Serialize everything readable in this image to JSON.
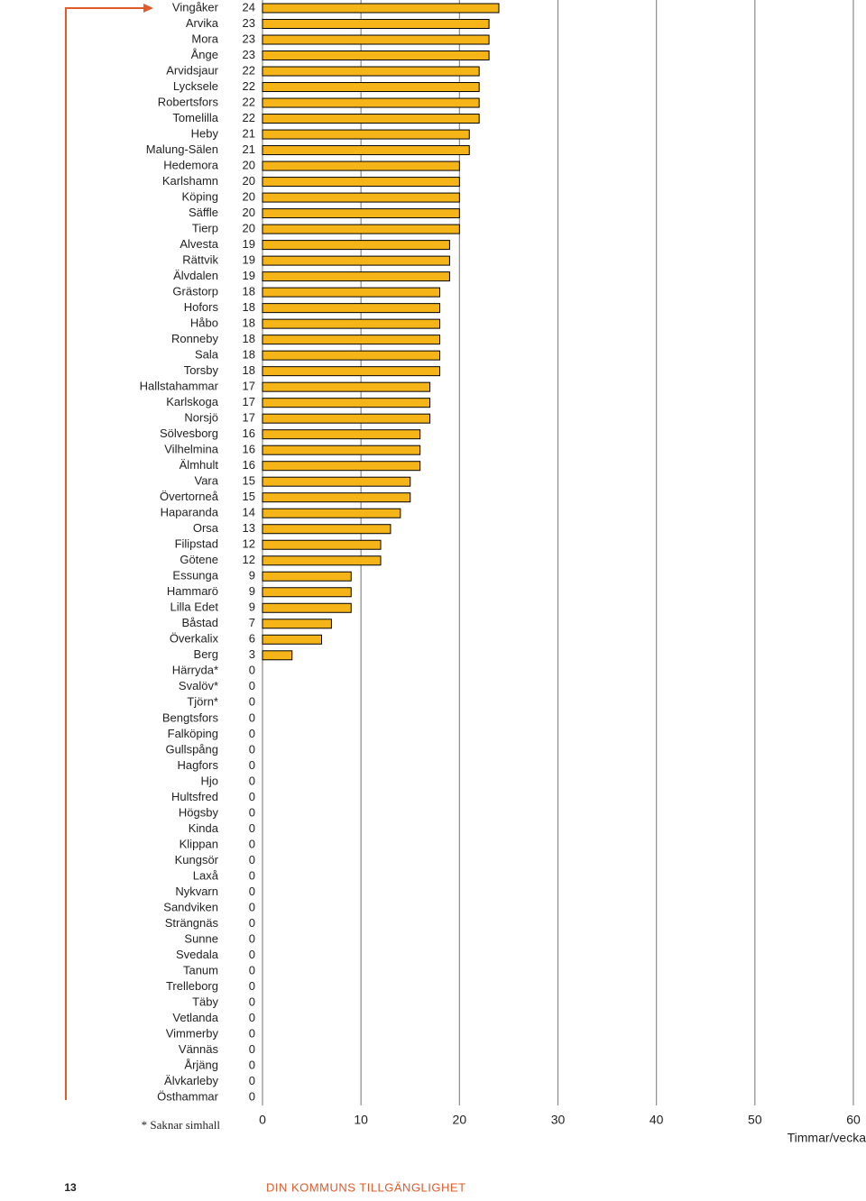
{
  "chart_data": {
    "type": "bar",
    "orientation": "horizontal",
    "categories": [
      "Vingåker",
      "Arvika",
      "Mora",
      "Ånge",
      "Arvidsjaur",
      "Lycksele",
      "Robertsfors",
      "Tomelilla",
      "Heby",
      "Malung-Sälen",
      "Hedemora",
      "Karlshamn",
      "Köping",
      "Säffle",
      "Tierp",
      "Alvesta",
      "Rättvik",
      "Älvdalen",
      "Grästorp",
      "Hofors",
      "Håbo",
      "Ronneby",
      "Sala",
      "Torsby",
      "Hallstahammar",
      "Karlskoga",
      "Norsjö",
      "Sölvesborg",
      "Vilhelmina",
      "Älmhult",
      "Vara",
      "Övertorneå",
      "Haparanda",
      "Orsa",
      "Filipstad",
      "Götene",
      "Essunga",
      "Hammarö",
      "Lilla Edet",
      "Båstad",
      "Överkalix",
      "Berg",
      "Härryda*",
      "Svalöv*",
      "Tjörn*",
      "Bengtsfors",
      "Falköping",
      "Gullspång",
      "Hagfors",
      "Hjo",
      "Hultsfred",
      "Högsby",
      "Kinda",
      "Klippan",
      "Kungsör",
      "Laxå",
      "Nykvarn",
      "Sandviken",
      "Strängnäs",
      "Sunne",
      "Svedala",
      "Tanum",
      "Trelleborg",
      "Täby",
      "Vetlanda",
      "Vimmerby",
      "Vännäs",
      "Årjäng",
      "Älvkarleby",
      "Östhammar"
    ],
    "values": [
      24,
      23,
      23,
      23,
      22,
      22,
      22,
      22,
      21,
      21,
      20,
      20,
      20,
      20,
      20,
      19,
      19,
      19,
      18,
      18,
      18,
      18,
      18,
      18,
      17,
      17,
      17,
      16,
      16,
      16,
      15,
      15,
      14,
      13,
      12,
      12,
      9,
      9,
      9,
      7,
      6,
      3,
      0,
      0,
      0,
      0,
      0,
      0,
      0,
      0,
      0,
      0,
      0,
      0,
      0,
      0,
      0,
      0,
      0,
      0,
      0,
      0,
      0,
      0,
      0,
      0,
      0,
      0,
      0,
      0
    ],
    "color": "#f5b418",
    "xlim": [
      0,
      60
    ],
    "xticks": [
      0,
      10,
      20,
      30,
      40,
      50,
      60
    ],
    "grid": true,
    "x_label": "Timmar/vecka",
    "note": "* Saknar simhall"
  },
  "page": {
    "number": "13",
    "footer": "DIN KOMMUNS TILLGÄNGLIGHET"
  }
}
